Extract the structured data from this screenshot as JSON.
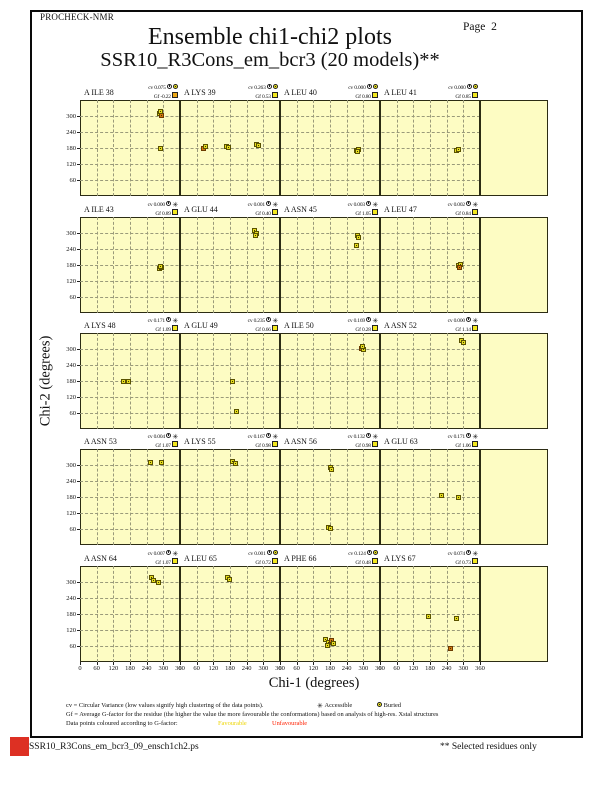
{
  "page": {
    "app": "PROCHECK-NMR",
    "page_label": "Page  2",
    "title": "Ensemble chi1-chi2 plots",
    "subtitle": "SSR10_R3Cons_em_bcr3 (20 models)**",
    "footer_left": "SSR10_R3Cons_em_bcr3_09_ensch1ch2.ps",
    "footer_right": "** Selected residues only"
  },
  "legend": {
    "line1": "cv = Circular Variance (low values signify high clustering of the data points).",
    "accessible_label": "Accessible",
    "buried_label": "Buried",
    "line2": "Gf = Average G-factor for the residue (the higher the value the more favourable the conformations)  based on analysis of high-res. Xstal structures",
    "line3": "Data points coloured according to G-factor:",
    "favourable_label": "Favourable",
    "unfavourable_label": "Unfavourable"
  },
  "colors": {
    "panel_bg": "#FDFCC3",
    "favourable_point": "#E6DC1E",
    "unfavourable_point": "#D2740F",
    "legend_favourable_text": "#EDD500",
    "legend_unfavourable_text": "#FF2000",
    "red_marker": "#DD3023"
  },
  "chart_data": {
    "type": "scatter",
    "title": "Ensemble chi1-chi2 plots",
    "xlabel": "Chi-1 (degrees)",
    "ylabel": "Chi-2 (degrees)",
    "xlim": [
      0,
      360
    ],
    "ylim": [
      0,
      360
    ],
    "x_ticks": [
      0,
      60,
      120,
      180,
      240,
      300,
      360
    ],
    "y_ticks": [
      60,
      120,
      180,
      240,
      300
    ],
    "grid": {
      "rows": 5,
      "cols": 4
    },
    "subplots": [
      {
        "residue": "A ILE 38",
        "cv": "0.075",
        "gf": "-0.22",
        "accessibility": "buried",
        "gf_color": "#EBA616",
        "points": [
          [
            285,
            310,
            "f"
          ],
          [
            293,
            303,
            "u"
          ],
          [
            288,
            317,
            "f"
          ],
          [
            288,
            180,
            "f"
          ]
        ]
      },
      {
        "residue": "A LYS 39",
        "cv": "0.263",
        "gf": "0.53",
        "accessibility": "buried",
        "gf_color": "#F2E71F",
        "points": [
          [
            83,
            180,
            "u"
          ],
          [
            90,
            184,
            "f"
          ],
          [
            168,
            186,
            "f"
          ],
          [
            176,
            182,
            "f"
          ],
          [
            275,
            192,
            "f"
          ],
          [
            284,
            188,
            "f"
          ]
        ]
      },
      {
        "residue": "A LEU 40",
        "cv": "0.000",
        "gf": "0.80",
        "accessibility": "buried",
        "gf_color": "#F2E71F",
        "points": [
          [
            275,
            172,
            "f"
          ],
          [
            281,
            176,
            "f"
          ],
          [
            278,
            168,
            "f"
          ]
        ]
      },
      {
        "residue": "A LEU 41",
        "cv": "0.000",
        "gf": "0.85",
        "accessibility": "buried",
        "gf_color": "#F2E71F",
        "points": [
          [
            277,
            170,
            "f"
          ],
          [
            283,
            175,
            "f"
          ]
        ]
      },
      {
        "residue": "A ILE 43",
        "cv": "0.000",
        "gf": "0.89",
        "accessibility": "accessible",
        "gf_color": "#F2E71F",
        "points": [
          [
            286,
            166,
            "f"
          ],
          [
            292,
            171,
            "f"
          ],
          [
            288,
            175,
            "f"
          ]
        ]
      },
      {
        "residue": "A GLU 44",
        "cv": "0.001",
        "gf": "0.40",
        "accessibility": "accessible",
        "gf_color": "#F2E71F",
        "points": [
          [
            268,
            308,
            "f"
          ],
          [
            276,
            300,
            "f"
          ],
          [
            271,
            292,
            "f"
          ]
        ]
      },
      {
        "residue": "A ASN 45",
        "cv": "0.003",
        "gf": "1.05",
        "accessibility": "accessible",
        "gf_color": "#F2E71F",
        "points": [
          [
            278,
            292,
            "f"
          ],
          [
            283,
            285,
            "f"
          ],
          [
            275,
            252,
            "f"
          ]
        ]
      },
      {
        "residue": "A LEU 47",
        "cv": "0.002",
        "gf": "0.84",
        "accessibility": "accessible",
        "gf_color": "#F2E71F",
        "points": [
          [
            283,
            178,
            "f"
          ],
          [
            289,
            183,
            "f"
          ],
          [
            286,
            172,
            "u"
          ]
        ]
      },
      {
        "residue": "A LYS 48",
        "cv": "0.171",
        "gf": "1.09",
        "accessibility": "accessible",
        "gf_color": "#F2E71F",
        "points": [
          [
            158,
            180,
            "f"
          ],
          [
            176,
            177,
            "f"
          ]
        ]
      },
      {
        "residue": "A GLU 49",
        "cv": "0.235",
        "gf": "0.66",
        "accessibility": "accessible",
        "gf_color": "#F2E71F",
        "points": [
          [
            188,
            180,
            "f"
          ],
          [
            205,
            67,
            "f"
          ]
        ]
      },
      {
        "residue": "A ILE 50",
        "cv": "0.169",
        "gf": "0.28",
        "accessibility": "accessible",
        "gf_color": "#F2E71F",
        "points": [
          [
            293,
            302,
            "u"
          ],
          [
            300,
            298,
            "f"
          ],
          [
            296,
            309,
            "f"
          ]
        ]
      },
      {
        "residue": "A ASN 52",
        "cv": "0.000",
        "gf": "1.14",
        "accessibility": "accessible",
        "gf_color": "#F2E71F",
        "points": [
          [
            295,
            331,
            "f"
          ],
          [
            301,
            326,
            "f"
          ]
        ]
      },
      {
        "residue": "A ASN 53",
        "cv": "0.004",
        "gf": "1.07",
        "accessibility": "accessible",
        "gf_color": "#F2E71F",
        "points": [
          [
            252,
            308,
            "f"
          ],
          [
            292,
            310,
            "f"
          ]
        ]
      },
      {
        "residue": "A LYS 55",
        "cv": "0.167",
        "gf": "0.98",
        "accessibility": "accessible",
        "gf_color": "#F2E71F",
        "points": [
          [
            190,
            312,
            "f"
          ],
          [
            200,
            306,
            "f"
          ]
        ]
      },
      {
        "residue": "A ASN 56",
        "cv": "0.132",
        "gf": "0.98",
        "accessibility": "accessible",
        "gf_color": "#F2E71F",
        "points": [
          [
            180,
            290,
            "f"
          ],
          [
            186,
            284,
            "f"
          ],
          [
            176,
            66,
            "f"
          ],
          [
            182,
            61,
            "f"
          ]
        ]
      },
      {
        "residue": "A GLU 63",
        "cv": "0.171",
        "gf": "1.06",
        "accessibility": "accessible",
        "gf_color": "#F2E71F",
        "points": [
          [
            221,
            185,
            "f"
          ],
          [
            284,
            180,
            "f"
          ]
        ]
      },
      {
        "residue": "A ASN 64",
        "cv": "0.007",
        "gf": "1.07",
        "accessibility": "accessible",
        "gf_color": "#F2E71F",
        "points": [
          [
            256,
            318,
            "f"
          ],
          [
            284,
            298,
            "f"
          ],
          [
            266,
            306,
            "f"
          ]
        ]
      },
      {
        "residue": "A LEU 65",
        "cv": "0.001",
        "gf": "0.72",
        "accessibility": "buried",
        "gf_color": "#F2E71F",
        "points": [
          [
            172,
            316,
            "f"
          ],
          [
            178,
            310,
            "f"
          ]
        ]
      },
      {
        "residue": "A PHE 66",
        "cv": "0.124",
        "gf": "0.48",
        "accessibility": "buried",
        "gf_color": "#F2E71F",
        "points": [
          [
            163,
            85,
            "f"
          ],
          [
            175,
            72,
            "f"
          ],
          [
            186,
            80,
            "u"
          ],
          [
            172,
            62,
            "f"
          ],
          [
            191,
            70,
            "f"
          ]
        ]
      },
      {
        "residue": "A LYS 67",
        "cv": "0.074",
        "gf": "0.73",
        "accessibility": "accessible",
        "gf_color": "#F2E71F",
        "points": [
          [
            174,
            170,
            "f"
          ],
          [
            277,
            162,
            "f"
          ],
          [
            252,
            52,
            "u"
          ]
        ]
      }
    ]
  }
}
